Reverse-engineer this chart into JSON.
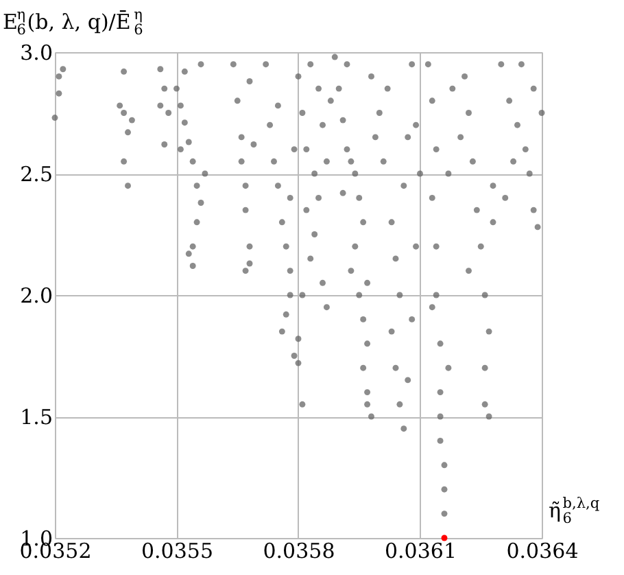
{
  "chart_data": {
    "type": "scatter",
    "xlabel": "η̃$_{6}$$^{b,λ,q}$",
    "ylabel": "E$_{6}$$^{η}$(b, λ, q)/Ē$_{6}$$^{η}$",
    "xlim": [
      0.0352,
      0.0364
    ],
    "xticks": [
      0.0352,
      0.0355,
      0.0358,
      0.0361,
      0.0364
    ],
    "ylim": [
      1.0,
      3.0
    ],
    "yticks": [
      {
        "value": 1.0,
        "label": "1.0"
      },
      {
        "value": 1.5,
        "label": "1.5"
      },
      {
        "value": 2.0,
        "label": "2.0"
      },
      {
        "value": 2.5,
        "label": "2.5"
      },
      {
        "value": 3.0,
        "label": "3.0"
      }
    ],
    "grid": true,
    "marker": "circle",
    "series": [
      {
        "color": "#666666",
        "x": [
          0.0352,
          0.03521,
          0.03522,
          0.03521,
          0.03536,
          0.03537,
          0.03538,
          0.03537,
          0.03538,
          0.03537,
          0.03539,
          0.03546,
          0.03547,
          0.03548,
          0.03547,
          0.03546,
          0.0355,
          0.03551,
          0.03552,
          0.03553,
          0.03554,
          0.03555,
          0.03556,
          0.03555,
          0.03554,
          0.03554,
          0.03553,
          0.03552,
          0.03556,
          0.03557,
          0.03551,
          0.03564,
          0.03565,
          0.03566,
          0.03566,
          0.03567,
          0.03567,
          0.03568,
          0.03568,
          0.03567,
          0.03569,
          0.03568,
          0.03572,
          0.03573,
          0.03574,
          0.03575,
          0.03576,
          0.03577,
          0.03578,
          0.03578,
          0.03577,
          0.03576,
          0.03579,
          0.03579,
          0.03578,
          0.03575,
          0.0358,
          0.03581,
          0.03582,
          0.03583,
          0.03584,
          0.03585,
          0.03586,
          0.03582,
          0.03583,
          0.03581,
          0.0358,
          0.0358,
          0.03581,
          0.03584,
          0.03586,
          0.03587,
          0.03588,
          0.03587,
          0.03585,
          0.03589,
          0.0359,
          0.03591,
          0.03592,
          0.03593,
          0.03594,
          0.03595,
          0.03596,
          0.03594,
          0.03593,
          0.03595,
          0.03596,
          0.03597,
          0.03596,
          0.03597,
          0.03598,
          0.03597,
          0.03591,
          0.03598,
          0.03599,
          0.03592,
          0.03597,
          0.036,
          0.03601,
          0.03602,
          0.03603,
          0.03604,
          0.03605,
          0.03603,
          0.03604,
          0.03605,
          0.03606,
          0.03607,
          0.03606,
          0.03607,
          0.03608,
          0.03609,
          0.03608,
          0.03609,
          0.0361,
          0.03612,
          0.03613,
          0.03614,
          0.03613,
          0.03614,
          0.03614,
          0.03615,
          0.03615,
          0.03615,
          0.03615,
          0.03616,
          0.03616,
          0.03616,
          0.03617,
          0.03613,
          0.03617,
          0.03618,
          0.03621,
          0.03622,
          0.03623,
          0.03624,
          0.03625,
          0.03626,
          0.03627,
          0.03626,
          0.03626,
          0.03627,
          0.03622,
          0.03628,
          0.03628,
          0.0362,
          0.0363,
          0.03632,
          0.03634,
          0.03635,
          0.03636,
          0.03637,
          0.03638,
          0.03639,
          0.03638,
          0.0364,
          0.03633,
          0.03631
        ],
        "values": [
          2.73,
          2.83,
          2.93,
          2.9,
          2.78,
          2.75,
          2.67,
          2.55,
          2.45,
          2.92,
          2.72,
          2.93,
          2.85,
          2.75,
          2.62,
          2.78,
          2.85,
          2.78,
          2.71,
          2.63,
          2.55,
          2.45,
          2.38,
          2.3,
          2.2,
          2.12,
          2.17,
          2.92,
          2.95,
          2.5,
          2.6,
          2.95,
          2.8,
          2.65,
          2.55,
          2.45,
          2.35,
          2.2,
          2.13,
          2.1,
          2.62,
          2.88,
          2.95,
          2.7,
          2.55,
          2.45,
          2.3,
          2.2,
          2.1,
          2.0,
          1.92,
          1.85,
          1.75,
          2.6,
          2.4,
          2.78,
          2.9,
          2.75,
          2.6,
          2.95,
          2.5,
          2.85,
          2.7,
          2.35,
          2.15,
          2.0,
          1.82,
          1.72,
          1.55,
          2.25,
          2.05,
          1.95,
          2.8,
          2.55,
          2.4,
          2.98,
          2.85,
          2.72,
          2.6,
          2.55,
          2.5,
          2.4,
          2.3,
          2.2,
          2.1,
          2.0,
          1.9,
          1.8,
          1.7,
          1.6,
          1.5,
          1.55,
          2.42,
          2.9,
          2.65,
          2.95,
          2.05,
          2.75,
          2.55,
          2.85,
          2.3,
          2.15,
          2.0,
          1.85,
          1.7,
          1.55,
          1.45,
          1.65,
          2.45,
          2.65,
          2.95,
          2.2,
          1.9,
          2.7,
          2.5,
          2.95,
          2.8,
          2.6,
          2.4,
          2.2,
          2.0,
          1.8,
          1.6,
          1.5,
          1.4,
          1.3,
          1.2,
          1.1,
          1.7,
          1.95,
          2.5,
          2.85,
          2.9,
          2.75,
          2.55,
          2.35,
          2.2,
          2.0,
          1.85,
          1.7,
          1.55,
          1.5,
          2.1,
          2.45,
          2.3,
          2.65,
          2.95,
          2.8,
          2.7,
          2.95,
          2.6,
          2.5,
          2.35,
          2.28,
          2.85,
          2.75,
          2.55,
          2.4
        ]
      },
      {
        "color": "#ff0000",
        "x": [
          0.03616
        ],
        "values": [
          1.0
        ]
      }
    ]
  }
}
